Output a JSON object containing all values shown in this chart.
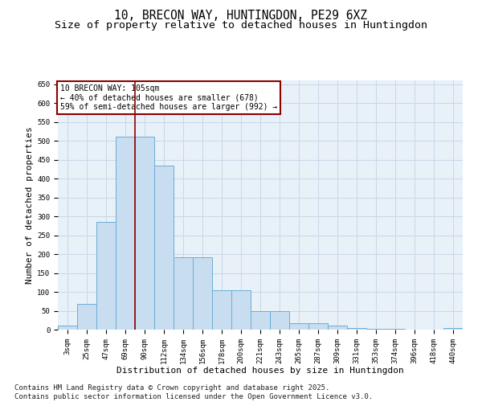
{
  "title_line1": "10, BRECON WAY, HUNTINGDON, PE29 6XZ",
  "title_line2": "Size of property relative to detached houses in Huntingdon",
  "xlabel": "Distribution of detached houses by size in Huntingdon",
  "ylabel": "Number of detached properties",
  "categories": [
    "3sqm",
    "25sqm",
    "47sqm",
    "69sqm",
    "90sqm",
    "112sqm",
    "134sqm",
    "156sqm",
    "178sqm",
    "200sqm",
    "221sqm",
    "243sqm",
    "265sqm",
    "287sqm",
    "309sqm",
    "331sqm",
    "353sqm",
    "374sqm",
    "396sqm",
    "418sqm",
    "440sqm"
  ],
  "bar_heights": [
    10,
    68,
    285,
    510,
    510,
    435,
    192,
    192,
    105,
    105,
    50,
    50,
    18,
    18,
    10,
    5,
    2,
    2,
    1,
    1,
    5
  ],
  "bar_color": "#c9ddf0",
  "bar_edge_color": "#6aaed6",
  "grid_color": "#c8d8e8",
  "background_color": "#e8f0f8",
  "vline_color": "#8b0000",
  "vline_pos": 3.5,
  "annotation_text_line1": "10 BRECON WAY: 105sqm",
  "annotation_text_line2": "← 40% of detached houses are smaller (678)",
  "annotation_text_line3": "59% of semi-detached houses are larger (992) →",
  "annotation_box_color": "#8b0000",
  "footer_text": "Contains HM Land Registry data © Crown copyright and database right 2025.\nContains public sector information licensed under the Open Government Licence v3.0.",
  "ylim": [
    0,
    660
  ],
  "yticks": [
    0,
    50,
    100,
    150,
    200,
    250,
    300,
    350,
    400,
    450,
    500,
    550,
    600,
    650
  ],
  "title_fontsize": 10.5,
  "subtitle_fontsize": 9.5,
  "tick_fontsize": 6.5,
  "label_fontsize": 8,
  "footer_fontsize": 6.5,
  "annotation_fontsize": 7
}
